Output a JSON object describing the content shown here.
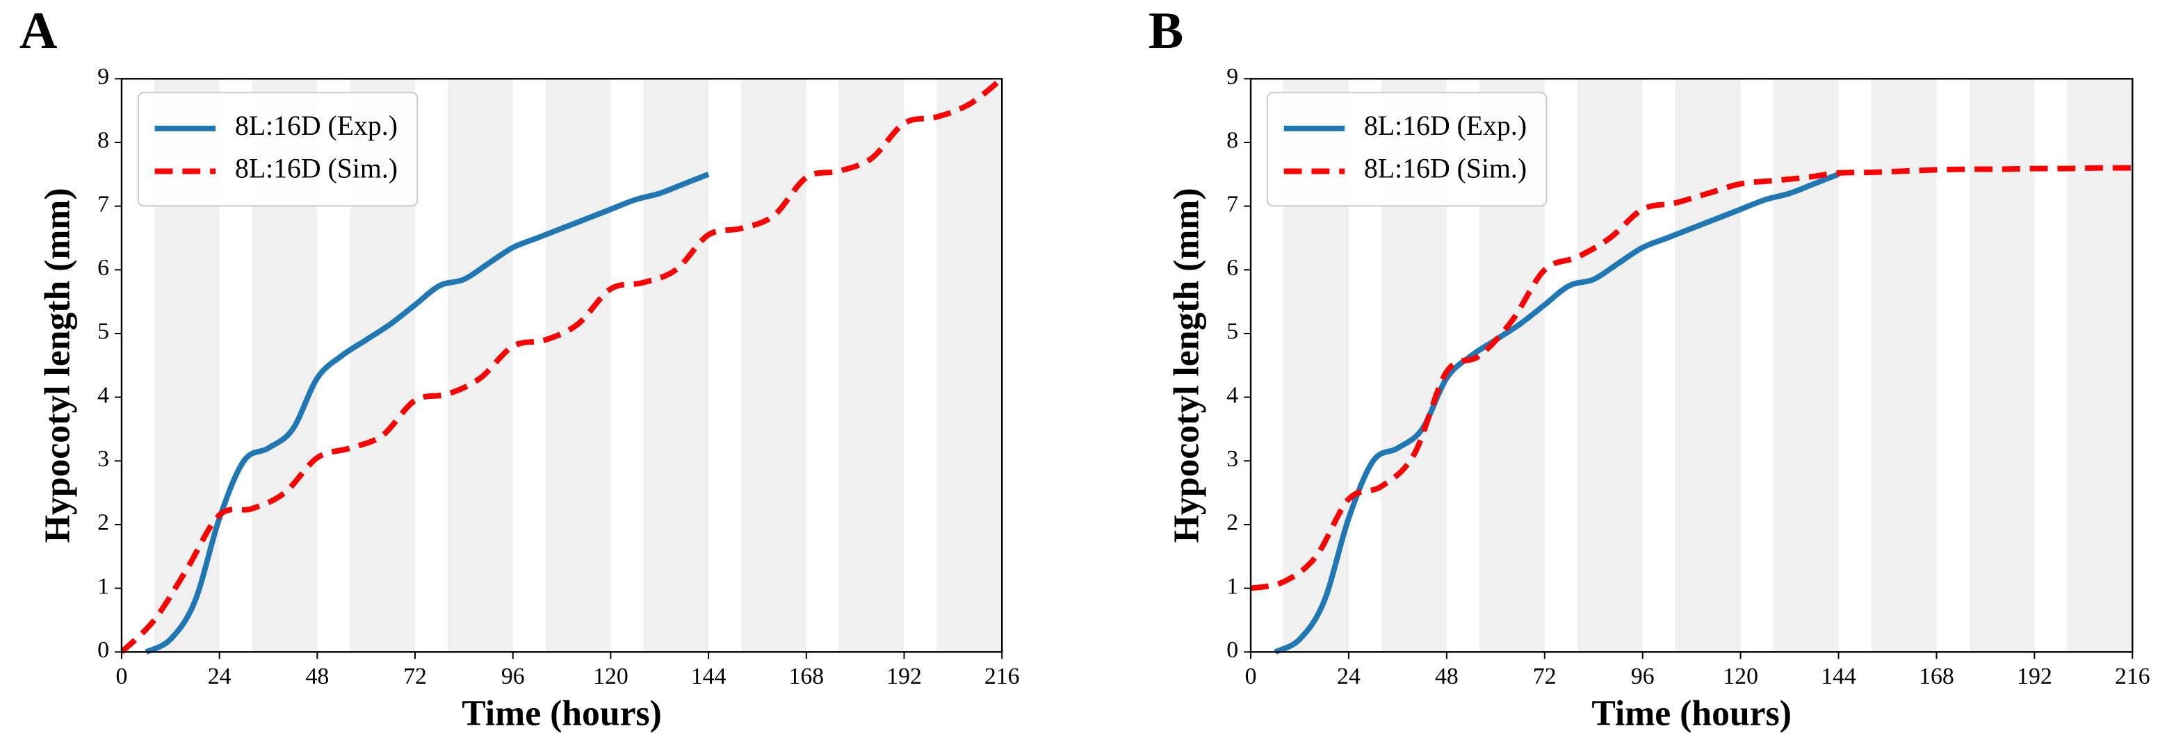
{
  "chart_data": [
    {
      "type": "line",
      "panel_label": "A",
      "x_label": "Time (hours)",
      "y_label": "Hypocotyl length (mm)",
      "xlim": [
        0,
        216
      ],
      "ylim": [
        0,
        9
      ],
      "xticks": [
        0,
        24,
        48,
        72,
        96,
        120,
        144,
        168,
        192,
        216
      ],
      "yticks": [
        0,
        1,
        2,
        3,
        4,
        5,
        6,
        7,
        8,
        9
      ],
      "shaded_spans": [
        [
          8,
          24
        ],
        [
          32,
          48
        ],
        [
          56,
          72
        ],
        [
          80,
          96
        ],
        [
          104,
          120
        ],
        [
          128,
          144
        ],
        [
          152,
          168
        ],
        [
          176,
          192
        ],
        [
          200,
          216
        ]
      ],
      "shade_color": "#f0f0f0",
      "legend": "upper left",
      "series": [
        {
          "name": "8L:16D (Exp.)",
          "color": "#1f77b4",
          "style": "solid",
          "x": [
            6,
            12,
            18,
            24,
            30,
            36,
            42,
            48,
            54,
            60,
            66,
            72,
            78,
            84,
            90,
            96,
            102,
            108,
            114,
            120,
            126,
            132,
            138,
            144
          ],
          "values": [
            0,
            0.2,
            0.8,
            2.1,
            3.0,
            3.2,
            3.5,
            4.3,
            4.65,
            4.9,
            5.15,
            5.45,
            5.75,
            5.85,
            6.1,
            6.35,
            6.5,
            6.65,
            6.8,
            6.95,
            7.1,
            7.2,
            7.35,
            7.5
          ]
        },
        {
          "name": "8L:16D (Sim.)",
          "color": "#ff0000",
          "style": "dashed",
          "x": [
            0,
            8,
            16,
            24,
            32,
            40,
            48,
            56,
            64,
            72,
            80,
            88,
            96,
            104,
            112,
            120,
            128,
            136,
            144,
            152,
            160,
            168,
            176,
            184,
            192,
            200,
            208,
            216
          ],
          "values": [
            0,
            0.5,
            1.3,
            2.15,
            2.25,
            2.5,
            3.05,
            3.2,
            3.4,
            3.95,
            4.05,
            4.3,
            4.8,
            4.9,
            5.15,
            5.7,
            5.8,
            6.0,
            6.55,
            6.65,
            6.85,
            7.45,
            7.55,
            7.75,
            8.3,
            8.4,
            8.6,
            9.0
          ]
        }
      ]
    },
    {
      "type": "line",
      "panel_label": "B",
      "x_label": "Time (hours)",
      "y_label": "Hypocotyl length (mm)",
      "xlim": [
        0,
        216
      ],
      "ylim": [
        0,
        9
      ],
      "xticks": [
        0,
        24,
        48,
        72,
        96,
        120,
        144,
        168,
        192,
        216
      ],
      "yticks": [
        0,
        1,
        2,
        3,
        4,
        5,
        6,
        7,
        8,
        9
      ],
      "shaded_spans": [
        [
          8,
          24
        ],
        [
          32,
          48
        ],
        [
          56,
          72
        ],
        [
          80,
          96
        ],
        [
          104,
          120
        ],
        [
          128,
          144
        ],
        [
          152,
          168
        ],
        [
          176,
          192
        ],
        [
          200,
          216
        ]
      ],
      "shade_color": "#f0f0f0",
      "legend": "upper left",
      "series": [
        {
          "name": "8L:16D (Exp.)",
          "color": "#1f77b4",
          "style": "solid",
          "x": [
            6,
            12,
            18,
            24,
            30,
            36,
            42,
            48,
            54,
            60,
            66,
            72,
            78,
            84,
            90,
            96,
            102,
            108,
            114,
            120,
            126,
            132,
            138,
            144
          ],
          "values": [
            0,
            0.2,
            0.8,
            2.1,
            3.0,
            3.2,
            3.5,
            4.3,
            4.65,
            4.9,
            5.15,
            5.45,
            5.75,
            5.85,
            6.1,
            6.35,
            6.5,
            6.65,
            6.8,
            6.95,
            7.1,
            7.2,
            7.35,
            7.5
          ]
        },
        {
          "name": "8L:16D (Sim.)",
          "color": "#ff0000",
          "style": "dashed",
          "x": [
            0,
            8,
            16,
            24,
            32,
            40,
            48,
            56,
            64,
            72,
            80,
            88,
            96,
            104,
            112,
            120,
            128,
            136,
            144,
            152,
            160,
            168,
            176,
            184,
            192,
            200,
            208,
            216
          ],
          "values": [
            1.0,
            1.1,
            1.5,
            2.4,
            2.6,
            3.1,
            4.4,
            4.65,
            5.2,
            6.0,
            6.2,
            6.5,
            6.95,
            7.05,
            7.2,
            7.35,
            7.4,
            7.45,
            7.52,
            7.53,
            7.55,
            7.57,
            7.58,
            7.58,
            7.59,
            7.59,
            7.6,
            7.6
          ]
        }
      ]
    }
  ]
}
